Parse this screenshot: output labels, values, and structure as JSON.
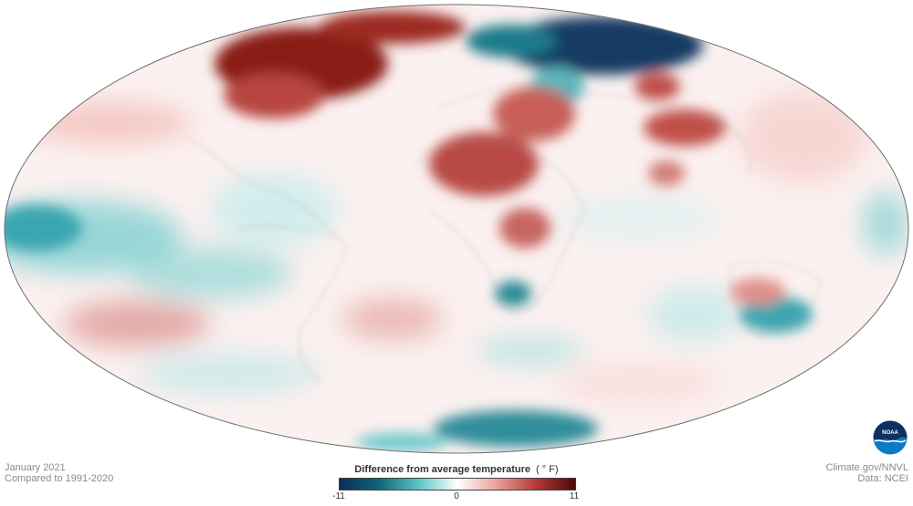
{
  "map": {
    "projection": "mollweide",
    "variable": "temperature-anomaly"
  },
  "captions": {
    "date": "January 2021",
    "baseline": "Compared to 1991-2020",
    "credit": "Climate.gov/NNVL",
    "source": "Data: NCEI"
  },
  "legend": {
    "title": "Difference from average temperature",
    "unit": "( ° F)",
    "min_label": "-11",
    "mid_label": "0",
    "max_label": "11",
    "min_value": -11,
    "max_value": 11,
    "colors": [
      "#0d2b5c",
      "#0f6677",
      "#5ac3c6",
      "#ffffff",
      "#e9a09a",
      "#b33a36",
      "#4a0a06"
    ]
  },
  "logo": {
    "text": "NOAA",
    "icon": "noaa-logo-icon"
  }
}
